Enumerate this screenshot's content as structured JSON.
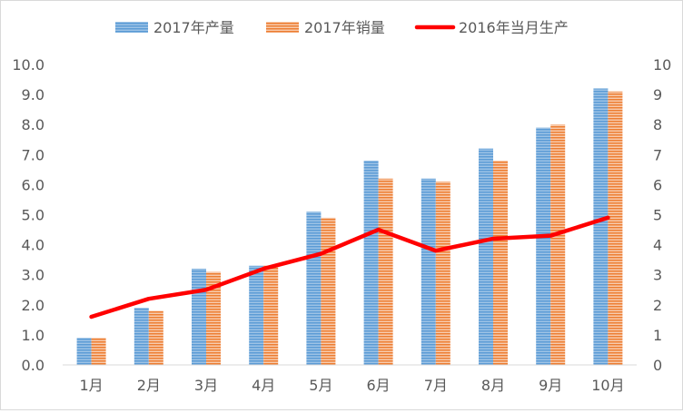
{
  "chart_data": {
    "type": "bar",
    "categories": [
      "1月",
      "2月",
      "3月",
      "4月",
      "5月",
      "6月",
      "7月",
      "8月",
      "9月",
      "10月"
    ],
    "series": [
      {
        "name": "2017年产量",
        "type": "bar",
        "axis": "left",
        "color": "#5b9bd5",
        "values": [
          0.9,
          1.9,
          3.2,
          3.3,
          5.1,
          6.8,
          6.2,
          7.2,
          7.9,
          9.2
        ]
      },
      {
        "name": "2017年销量",
        "type": "bar",
        "axis": "left",
        "color": "#ed7d31",
        "values": [
          0.9,
          1.8,
          3.1,
          3.3,
          4.9,
          6.2,
          6.1,
          6.8,
          8.0,
          9.1
        ]
      },
      {
        "name": "2016年当月生产",
        "type": "line",
        "axis": "right",
        "color": "#ff0000",
        "values": [
          1.6,
          2.2,
          2.5,
          3.2,
          3.7,
          4.5,
          3.8,
          4.2,
          4.3,
          4.9
        ]
      }
    ],
    "y_left": {
      "ylim": [
        0,
        10
      ],
      "ticks": [
        "0.0",
        "1.0",
        "2.0",
        "3.0",
        "4.0",
        "5.0",
        "6.0",
        "7.0",
        "8.0",
        "9.0",
        "10.0"
      ]
    },
    "y_right": {
      "ylim": [
        0,
        10
      ],
      "ticks": [
        "0",
        "1",
        "2",
        "3",
        "4",
        "5",
        "6",
        "7",
        "8",
        "9",
        "10"
      ]
    },
    "grid": false,
    "legend_position": "top"
  }
}
